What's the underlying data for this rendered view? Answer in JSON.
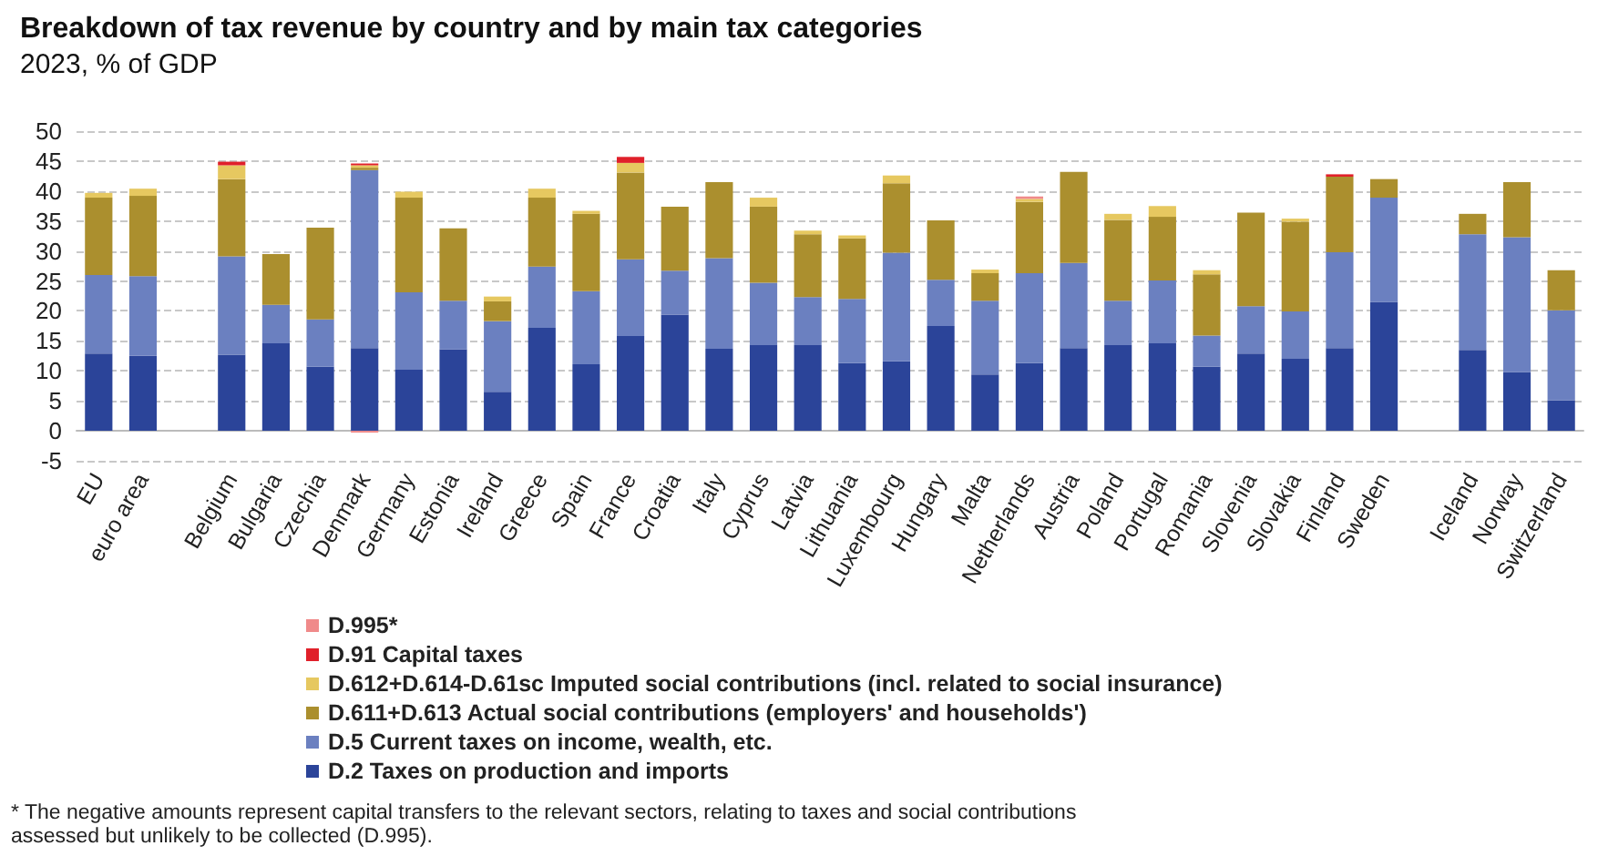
{
  "chart_data": {
    "type": "bar",
    "stacked": true,
    "title": "Breakdown of tax revenue by country and by main tax categories",
    "subtitle": "2023, % of GDP",
    "annotations": [
      "* The negative amounts represent capital transfers to the relevant sectors, relating to taxes and social contributions assessed but unlikely to be collected (D.995)."
    ],
    "categories": [
      "EU",
      "euro area",
      null,
      "Belgium",
      "Bulgaria",
      "Czechia",
      "Denmark",
      "Germany",
      "Estonia",
      "Ireland",
      "Greece",
      "Spain",
      "France",
      "Croatia",
      "Italy",
      "Cyprus",
      "Latvia",
      "Lithuania",
      "Luxembourg",
      "Hungary",
      "Malta",
      "Netherlands",
      "Austria",
      "Poland",
      "Portugal",
      "Romania",
      "Slovenia",
      "Slovakia",
      "Finland",
      "Sweden",
      null,
      "Iceland",
      "Norway",
      "Switzerland"
    ],
    "series": [
      {
        "name": "D.2 Taxes on production and imports",
        "color": "#2b4499",
        "values": [
          12.9,
          12.5,
          null,
          12.7,
          14.6,
          10.7,
          13.8,
          10.2,
          13.6,
          6.5,
          17.2,
          11.1,
          15.8,
          19.4,
          13.7,
          14.3,
          14.3,
          11.3,
          11.6,
          17.5,
          9.4,
          11.3,
          13.8,
          14.3,
          14.6,
          10.7,
          12.9,
          12.0,
          13.8,
          21.5,
          null,
          13.5,
          9.8,
          5.1
        ]
      },
      {
        "name": "D.5 Current taxes on income, wealth, etc.",
        "color": "#6b80c0",
        "values": [
          13.1,
          13.3,
          null,
          16.4,
          6.4,
          7.9,
          29.7,
          12.9,
          8.1,
          11.8,
          10.2,
          12.2,
          12.8,
          7.3,
          15.1,
          10.4,
          8.0,
          10.7,
          18.1,
          7.7,
          12.3,
          15.0,
          14.2,
          7.4,
          10.5,
          5.2,
          7.9,
          7.9,
          16.0,
          17.4,
          null,
          19.3,
          22.5,
          15.0
        ]
      },
      {
        "name": "D.611+D.613 Actual social contributions (employers' and households')",
        "color": "#ab8f2e",
        "values": [
          12.9,
          13.4,
          null,
          12.9,
          8.5,
          15.3,
          0.4,
          15.8,
          12.1,
          3.3,
          11.5,
          12.9,
          14.5,
          10.7,
          12.7,
          12.7,
          10.5,
          10.1,
          11.6,
          9.9,
          4.6,
          11.9,
          15.2,
          13.5,
          10.6,
          10.2,
          15.6,
          15.0,
          12.6,
          3.1,
          null,
          3.4,
          9.2,
          6.7
        ]
      },
      {
        "name": "D.612+D.614-D.61sc Imputed social contributions (incl. related to social insurance)",
        "color": "#e6c860",
        "values": [
          0.8,
          1.2,
          null,
          2.3,
          null,
          null,
          0.4,
          1.0,
          null,
          0.8,
          1.5,
          0.5,
          1.6,
          null,
          null,
          1.5,
          0.6,
          0.5,
          1.3,
          null,
          0.6,
          0.5,
          null,
          1.0,
          1.8,
          0.7,
          null,
          0.5,
          null,
          null,
          null,
          null,
          null,
          null
        ]
      },
      {
        "name": "D.91 Capital taxes",
        "color": "#e0202a",
        "values": [
          null,
          null,
          null,
          0.6,
          null,
          null,
          0.3,
          null,
          null,
          null,
          null,
          null,
          1.0,
          null,
          null,
          null,
          null,
          null,
          null,
          null,
          null,
          null,
          null,
          null,
          null,
          null,
          null,
          null,
          0.4,
          null,
          null,
          null,
          null,
          null
        ]
      },
      {
        "name": "D.995*",
        "color": "#f08a8a",
        "values": [
          null,
          null,
          null,
          null,
          null,
          null,
          -0.3,
          null,
          null,
          null,
          null,
          null,
          null,
          null,
          null,
          null,
          null,
          null,
          null,
          null,
          null,
          0.4,
          null,
          null,
          null,
          null,
          null,
          null,
          null,
          null,
          null,
          null,
          null,
          null
        ]
      }
    ],
    "ylim": [
      -5,
      50
    ],
    "yticks": [
      -5,
      0,
      5,
      10,
      15,
      20,
      25,
      30,
      35,
      40,
      45,
      50
    ],
    "grid": "y",
    "legend": "bottom"
  }
}
